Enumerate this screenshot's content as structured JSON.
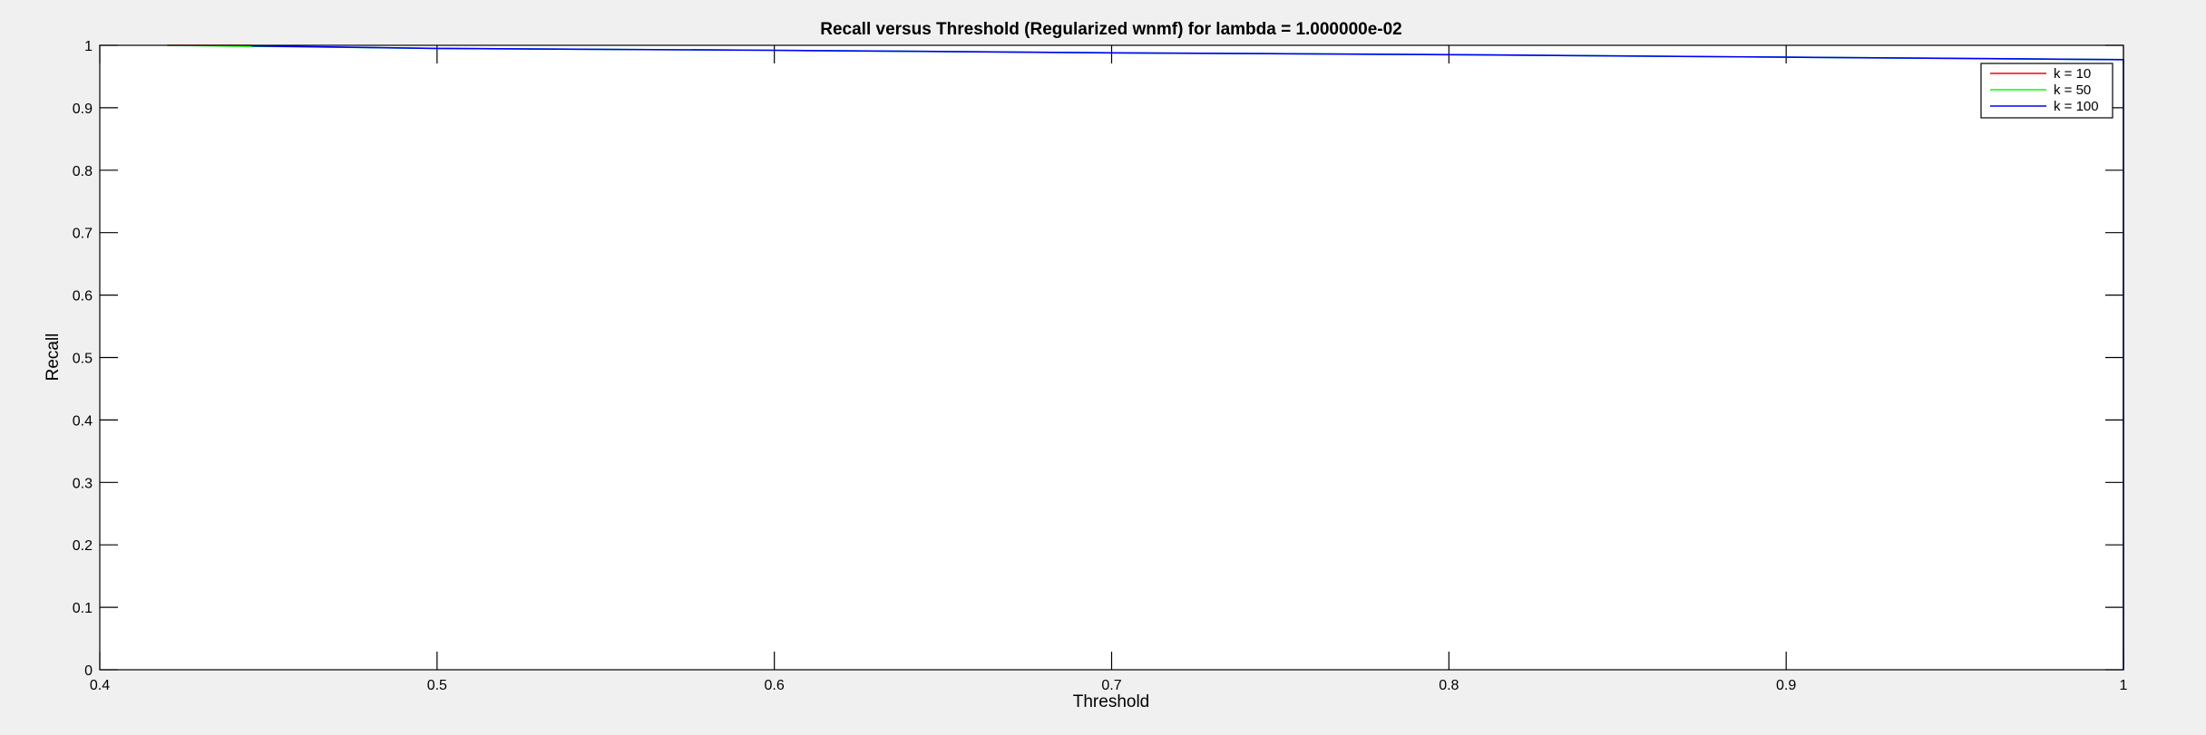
{
  "chart_data": {
    "type": "line",
    "title": "Recall versus Threshold (Regularized wnmf) for lambda = 1.000000e-02",
    "xlabel": "Threshold",
    "ylabel": "Recall",
    "xlim": [
      0.4,
      1.0
    ],
    "ylim": [
      0,
      1
    ],
    "xticks": [
      "0.4",
      "0.5",
      "0.6",
      "0.7",
      "0.8",
      "0.9",
      "1"
    ],
    "yticks": [
      "0",
      "0.1",
      "0.2",
      "0.3",
      "0.4",
      "0.5",
      "0.6",
      "0.7",
      "0.8",
      "0.9",
      "1"
    ],
    "grid": false,
    "legend_position": "top-right",
    "series": [
      {
        "name": "k = 10",
        "color": "#ff0000",
        "x": [
          0.42,
          0.445
        ],
        "y": [
          1.0,
          1.0
        ]
      },
      {
        "name": "k = 50",
        "color": "#00ff00",
        "x": [
          0.42,
          0.5,
          0.6,
          0.7,
          0.8,
          0.9,
          1.0,
          1.0
        ],
        "y": [
          1.0,
          0.995,
          0.992,
          0.988,
          0.985,
          0.981,
          0.977,
          0.0
        ]
      },
      {
        "name": "k = 100",
        "color": "#0000ff",
        "x": [
          0.445,
          0.5,
          0.6,
          0.7,
          0.8,
          0.9,
          1.0,
          1.0
        ],
        "y": [
          0.999,
          0.995,
          0.992,
          0.988,
          0.985,
          0.981,
          0.977,
          0.0
        ]
      }
    ]
  }
}
